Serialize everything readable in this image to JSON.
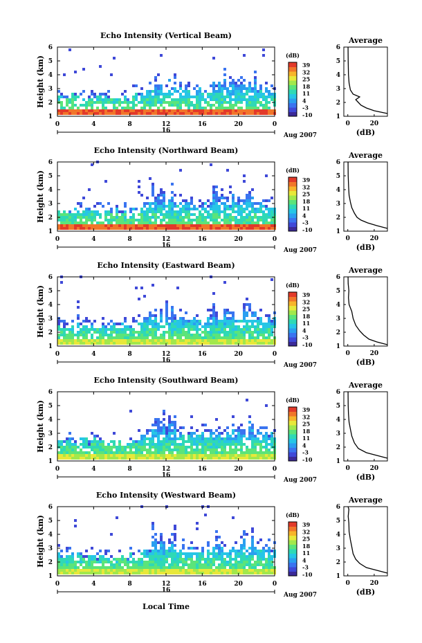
{
  "palette": [
    "#3b2a98",
    "#3f49d8",
    "#3a74f0",
    "#2a9ff0",
    "#26c6e6",
    "#2fd9b5",
    "#5be47a",
    "#a2e84c",
    "#e8e83a",
    "#f7b52b",
    "#f1762a",
    "#e23a2a"
  ],
  "shared": {
    "ylabel": "Height (km)",
    "y_ticks": [
      "1",
      "2",
      "3",
      "4",
      "5",
      "6"
    ],
    "x_ticks": [
      "0",
      "4",
      "8",
      "12",
      "16",
      "20",
      "0"
    ],
    "day_label": "16",
    "date_label": "Aug 2007",
    "colorbar_unit": "(dB)",
    "colorbar_ticks": [
      "39",
      "32",
      "25",
      "18",
      "11",
      "4",
      "-3",
      "-10"
    ],
    "avg_title": "Average",
    "avg_xlabel": "(dB)",
    "avg_x_ticks": [
      "0",
      "20"
    ],
    "xlabel_bottom": "Local Time"
  },
  "chart_data": [
    {
      "type": "heatmap",
      "title": "Echo Intensity (Vertical Beam)",
      "ylim": [
        1,
        6
      ],
      "xlim_hours": [
        0,
        24
      ],
      "zlim": [
        -10,
        39
      ],
      "profile": {
        "type": "line",
        "xlim": [
          -3,
          30
        ],
        "points": [
          [
            30,
            1.2
          ],
          [
            20,
            1.4
          ],
          [
            14,
            1.6
          ],
          [
            10,
            1.8
          ],
          [
            8,
            2.0
          ],
          [
            6,
            2.2
          ],
          [
            9,
            2.4
          ],
          [
            4,
            2.6
          ],
          [
            2,
            2.9
          ],
          [
            1,
            3.4
          ],
          [
            0.5,
            4
          ],
          [
            0.3,
            5
          ],
          [
            0.2,
            6
          ]
        ]
      }
    },
    {
      "type": "heatmap",
      "title": "Echo Intensity (Northward Beam)",
      "ylim": [
        1,
        6
      ],
      "xlim_hours": [
        0,
        24
      ],
      "zlim": [
        -10,
        39
      ],
      "profile": {
        "type": "line",
        "xlim": [
          -3,
          30
        ],
        "points": [
          [
            30,
            1.2
          ],
          [
            22,
            1.4
          ],
          [
            15,
            1.6
          ],
          [
            10,
            1.8
          ],
          [
            7,
            2.0
          ],
          [
            5,
            2.3
          ],
          [
            3,
            2.7
          ],
          [
            2,
            3.1
          ],
          [
            1,
            3.6
          ],
          [
            0.6,
            4.2
          ],
          [
            0.3,
            5
          ],
          [
            0.2,
            6
          ]
        ]
      }
    },
    {
      "type": "heatmap",
      "title": "Echo Intensity (Eastward Beam)",
      "ylim": [
        1,
        6
      ],
      "xlim_hours": [
        0,
        24
      ],
      "zlim": [
        -10,
        39
      ],
      "profile": {
        "type": "line",
        "xlim": [
          -3,
          30
        ],
        "points": [
          [
            30,
            1.1
          ],
          [
            22,
            1.3
          ],
          [
            16,
            1.5
          ],
          [
            12,
            1.8
          ],
          [
            9,
            2.1
          ],
          [
            6,
            2.5
          ],
          [
            4,
            3.0
          ],
          [
            3,
            3.5
          ],
          [
            1,
            4.0
          ],
          [
            0.5,
            4.5
          ],
          [
            0.8,
            5.0
          ],
          [
            0.3,
            5.5
          ],
          [
            0.2,
            6
          ]
        ]
      }
    },
    {
      "type": "heatmap",
      "title": "Echo Intensity (Southward Beam)",
      "ylim": [
        1,
        6
      ],
      "xlim_hours": [
        0,
        24
      ],
      "zlim": [
        -10,
        39
      ],
      "profile": {
        "type": "line",
        "xlim": [
          -3,
          30
        ],
        "points": [
          [
            30,
            1.2
          ],
          [
            22,
            1.4
          ],
          [
            14,
            1.6
          ],
          [
            8,
            1.9
          ],
          [
            5,
            2.3
          ],
          [
            3,
            2.8
          ],
          [
            2,
            3.3
          ],
          [
            1,
            3.8
          ],
          [
            0.5,
            4.4
          ],
          [
            0.3,
            5
          ],
          [
            0.2,
            6
          ]
        ]
      }
    },
    {
      "type": "heatmap",
      "title": "Echo Intensity (Westward Beam)",
      "ylim": [
        1,
        6
      ],
      "xlim_hours": [
        0,
        24
      ],
      "zlim": [
        -10,
        39
      ],
      "profile": {
        "type": "line",
        "xlim": [
          -3,
          30
        ],
        "points": [
          [
            30,
            1.2
          ],
          [
            22,
            1.4
          ],
          [
            14,
            1.6
          ],
          [
            9,
            1.9
          ],
          [
            6,
            2.2
          ],
          [
            4,
            2.6
          ],
          [
            3,
            3.1
          ],
          [
            2,
            3.6
          ],
          [
            1,
            4.2
          ],
          [
            0.8,
            4.8
          ],
          [
            0.3,
            5.3
          ],
          [
            0.8,
            5.8
          ],
          [
            0.2,
            6
          ]
        ]
      }
    }
  ]
}
